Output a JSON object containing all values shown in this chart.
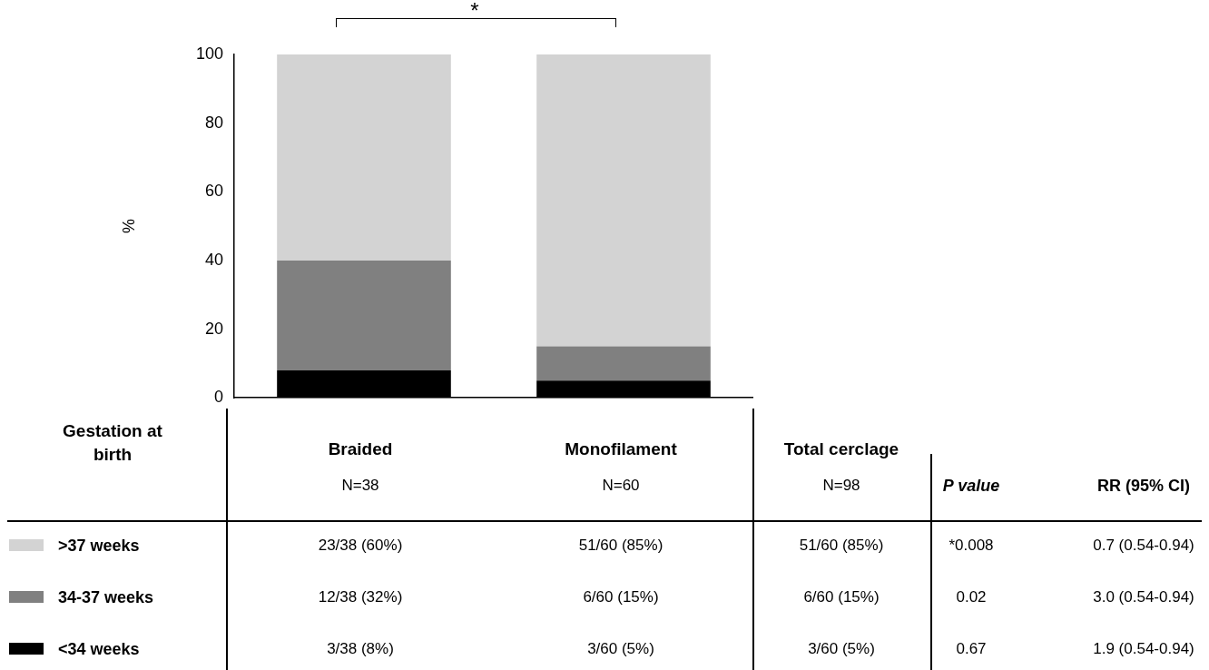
{
  "chart_data": {
    "type": "bar",
    "stacked": true,
    "ylabel": "%",
    "legend_title": "Gestation at birth",
    "legend": "left",
    "tick_labels": "y",
    "ylim": [
      0,
      100
    ],
    "yticks": [
      0,
      20,
      40,
      60,
      80,
      100
    ],
    "grid": false,
    "categories": [
      "Braided",
      "Monofilament"
    ],
    "series": [
      {
        "name": "<34 weeks",
        "color": "#000000",
        "values": [
          8,
          5
        ]
      },
      {
        "name": "34-37 weeks",
        "color": "#808080",
        "values": [
          32,
          10
        ]
      },
      {
        "name": ">37 weeks",
        "color": "#d3d3d3",
        "values": [
          60,
          85
        ]
      }
    ],
    "annotations": [
      "*",
      "N=38",
      "N=60",
      "Total cerclage",
      "N=98",
      "P value",
      "RR (95% CI)",
      "23/38 (60%)",
      "51/60 (85%)",
      "51/60 (85%)",
      "*0.008",
      "0.7 (0.54-0.94)",
      "12/38 (32%)",
      "6/60 (15%)",
      "6/60 (15%)",
      "0.02",
      "3.0 (0.54-0.94)",
      "3/38 (8%)",
      "3/60 (5%)",
      "3/60 (5%)",
      "0.67",
      "1.9 (0.54-0.94)"
    ]
  }
}
